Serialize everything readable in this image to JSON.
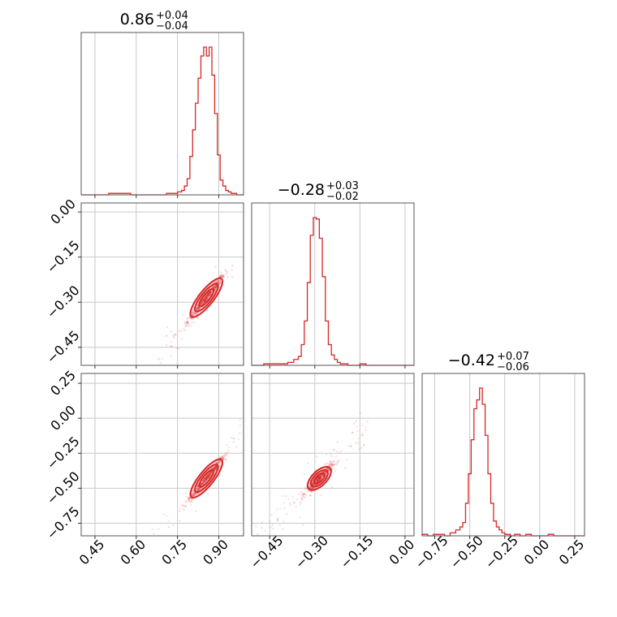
{
  "chart_data": {
    "type": "corner",
    "accent_color": "#d62728",
    "grid": true,
    "params": [
      {
        "range": [
          0.4,
          0.99
        ],
        "ticks": [
          0.45,
          0.6,
          0.75,
          0.9
        ],
        "tick_labels": [
          "0.45",
          "0.60",
          "0.75",
          "0.90"
        ],
        "title_value": "0.86",
        "title_plus": "+0.04",
        "title_minus": "−0.04"
      },
      {
        "range": [
          -0.51,
          0.03
        ],
        "ticks": [
          -0.45,
          -0.3,
          -0.15,
          0.0
        ],
        "tick_labels": [
          "−0.45",
          "−0.30",
          "−0.15",
          "0.00"
        ],
        "title_value": "−0.28",
        "title_plus": "+0.03",
        "title_minus": "−0.02"
      },
      {
        "range": [
          -0.84,
          0.32
        ],
        "ticks": [
          -0.75,
          -0.5,
          -0.25,
          0.0,
          0.25
        ],
        "tick_labels": [
          "−0.75",
          "−0.50",
          "−0.25",
          "0.00",
          "0.25"
        ],
        "title_value": "−0.42",
        "title_plus": "+0.07",
        "title_minus": "−0.06"
      }
    ],
    "histograms": [
      {
        "param": 0,
        "x": [
          0.48,
          0.52,
          0.56,
          0.6,
          0.64,
          0.68,
          0.7,
          0.72,
          0.74,
          0.76,
          0.77,
          0.78,
          0.79,
          0.8,
          0.81,
          0.82,
          0.83,
          0.84,
          0.85,
          0.86,
          0.87,
          0.88,
          0.89,
          0.9,
          0.91,
          0.92,
          0.93,
          0.94,
          0.95,
          0.96,
          0.97,
          0.98
        ],
        "y": [
          0.0,
          0.01,
          0.01,
          0.0,
          0.0,
          0.0,
          0.0,
          0.01,
          0.01,
          0.02,
          0.03,
          0.06,
          0.11,
          0.26,
          0.44,
          0.62,
          0.79,
          0.94,
          1.0,
          0.94,
          1.0,
          0.81,
          0.55,
          0.27,
          0.1,
          0.06,
          0.03,
          0.02,
          0.01,
          0.01,
          0.0,
          0.0
        ]
      },
      {
        "param": 1,
        "x": [
          -0.5,
          -0.48,
          -0.46,
          -0.44,
          -0.42,
          -0.4,
          -0.38,
          -0.36,
          -0.35,
          -0.34,
          -0.33,
          -0.32,
          -0.31,
          -0.3,
          -0.29,
          -0.28,
          -0.27,
          -0.26,
          -0.25,
          -0.24,
          -0.23,
          -0.22,
          -0.21,
          -0.2,
          -0.18,
          -0.16,
          -0.14,
          -0.12,
          -0.1,
          -0.08,
          -0.06,
          -0.04,
          -0.02,
          0.0
        ],
        "y": [
          0.0,
          0.0,
          0.01,
          0.01,
          0.01,
          0.01,
          0.02,
          0.04,
          0.06,
          0.14,
          0.3,
          0.56,
          0.88,
          1.0,
          0.99,
          0.86,
          0.6,
          0.3,
          0.14,
          0.07,
          0.04,
          0.02,
          0.01,
          0.01,
          0.0,
          0.0,
          0.01,
          0.0,
          0.0,
          0.0,
          0.0,
          0.0,
          0.0,
          0.0
        ]
      },
      {
        "param": 2,
        "x": [
          -0.82,
          -0.78,
          -0.74,
          -0.7,
          -0.66,
          -0.62,
          -0.58,
          -0.56,
          -0.54,
          -0.52,
          -0.5,
          -0.48,
          -0.46,
          -0.44,
          -0.42,
          -0.4,
          -0.38,
          -0.36,
          -0.34,
          -0.32,
          -0.3,
          -0.28,
          -0.26,
          -0.24,
          -0.22,
          -0.2,
          -0.16,
          -0.12,
          -0.08,
          -0.04,
          0.0,
          0.04,
          0.08,
          0.12,
          0.16,
          0.2,
          0.24
        ],
        "y": [
          0.01,
          0.0,
          0.01,
          0.01,
          0.0,
          0.02,
          0.04,
          0.06,
          0.09,
          0.22,
          0.42,
          0.65,
          0.86,
          0.92,
          1.0,
          0.89,
          0.68,
          0.42,
          0.22,
          0.1,
          0.06,
          0.04,
          0.02,
          0.01,
          0.01,
          0.0,
          0.01,
          0.0,
          0.01,
          0.0,
          0.0,
          0.0,
          0.01,
          0.0,
          0.0,
          0.0,
          0.0
        ]
      }
    ],
    "scatter_panels": [
      {
        "x_param": 0,
        "y_param": 1,
        "slope": 1.15,
        "x_center": 0.855,
        "y_center": -0.285,
        "x_sd": 0.034,
        "y_sd": 0.022,
        "tail_x": [
          0.45,
          0.96
        ],
        "point_count": 450
      },
      {
        "x_param": 0,
        "y_param": 2,
        "slope": 2.45,
        "x_center": 0.855,
        "y_center": -0.43,
        "x_sd": 0.034,
        "y_sd": 0.045,
        "tail_x": [
          0.45,
          0.98
        ],
        "point_count": 450
      },
      {
        "x_param": 1,
        "y_param": 2,
        "slope": 2.1,
        "x_center": -0.285,
        "y_center": -0.43,
        "x_sd": 0.022,
        "y_sd": 0.06,
        "tail_x": [
          -0.5,
          -0.12
        ],
        "point_count": 450
      }
    ]
  }
}
